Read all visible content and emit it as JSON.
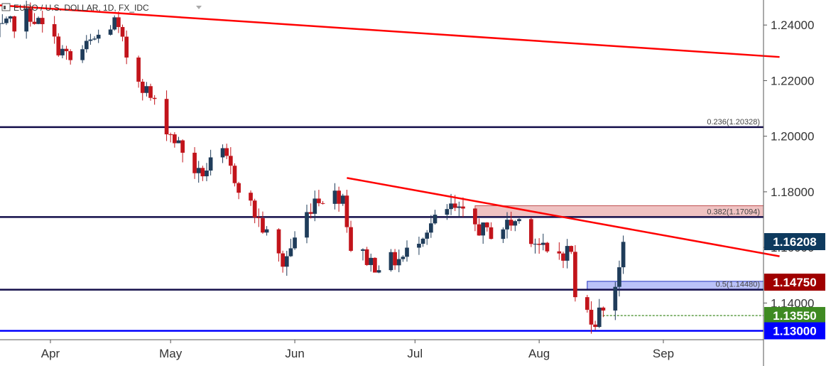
{
  "header": {
    "title": "EURO / U.S. DOLLAR, 1D, FX_IDC"
  },
  "colors": {
    "up": "#1f3c5a",
    "down": "#c2141b",
    "trendline": "#ff0000",
    "level": "#130e4a",
    "support_line": "#0000ff",
    "price_tag_current": "#0e3a5e",
    "price_tag_red": "#a00000",
    "price_tag_green": "#3e8a22",
    "price_tag_blue": "#0000ff",
    "dashed_line": "#3e8a22",
    "resistance_zone": "#e8a8a8",
    "support_zone": "#9ea8f5"
  },
  "chart_data": {
    "type": "candlestick",
    "title": "EURO / U.S. DOLLAR, 1D, FX_IDC",
    "ylim": [
      1.1268,
      1.249
    ],
    "y_ticks": [
      1.24,
      1.22,
      1.2,
      1.18,
      1.16,
      1.14
    ],
    "y_tick_labels": [
      "1.24000",
      "1.22000",
      "1.20000",
      "1.18000",
      "1.16000",
      "1.14000"
    ],
    "months": [
      {
        "label": "Apr",
        "date": "2018-04-01"
      },
      {
        "label": "May",
        "date": "2018-05-01"
      },
      {
        "label": "Jun",
        "date": "2018-06-01"
      },
      {
        "label": "Jul",
        "date": "2018-07-01"
      },
      {
        "label": "Aug",
        "date": "2018-08-01"
      },
      {
        "label": "Sep",
        "date": "2018-09-01"
      }
    ],
    "anchors": [
      {
        "date": "2018-03-16",
        "price": 1.235
      },
      {
        "date": "2018-03-27",
        "price": 1.244
      },
      {
        "date": "2018-04-06",
        "price": 1.227
      },
      {
        "date": "2018-04-17",
        "price": 1.241
      },
      {
        "date": "2018-04-20",
        "price": 1.229
      },
      {
        "date": "2018-05-01",
        "price": 1.201
      },
      {
        "date": "2018-05-08",
        "price": 1.186
      },
      {
        "date": "2018-05-14",
        "price": 1.193
      },
      {
        "date": "2018-05-29",
        "price": 1.154
      },
      {
        "date": "2018-06-06",
        "price": 1.178
      },
      {
        "date": "2018-06-13",
        "price": 1.179
      },
      {
        "date": "2018-06-15",
        "price": 1.16
      },
      {
        "date": "2018-06-21",
        "price": 1.154
      },
      {
        "date": "2018-06-28",
        "price": 1.156
      },
      {
        "date": "2018-07-03",
        "price": 1.166
      },
      {
        "date": "2018-07-10",
        "price": 1.174
      },
      {
        "date": "2018-07-19",
        "price": 1.165
      },
      {
        "date": "2018-07-27",
        "price": 1.17
      },
      {
        "date": "2018-08-03",
        "price": 1.157
      },
      {
        "date": "2018-08-09",
        "price": 1.159
      },
      {
        "date": "2018-08-10",
        "price": 1.141
      },
      {
        "date": "2018-08-15",
        "price": 1.134
      },
      {
        "date": "2018-08-20",
        "price": 1.147
      },
      {
        "date": "2018-08-22",
        "price": 1.162
      }
    ],
    "last_candle_date": "2018-08-22",
    "trendlines": [
      {
        "from": {
          "date": "2018-03-15",
          "price": 1.2475
        },
        "to": {
          "date": "2018-09-30",
          "price": 1.2285
        }
      },
      {
        "from": {
          "date": "2018-06-14",
          "price": 1.185
        },
        "to": {
          "date": "2018-09-30",
          "price": 1.1568
        }
      }
    ],
    "fib_levels": [
      {
        "label": "0.236(1.20328)",
        "price": 1.20328
      },
      {
        "label": "0.382(1.17094)",
        "price": 1.17094
      },
      {
        "label": "0.5(1.14480)",
        "price": 1.1448
      }
    ],
    "support_line": {
      "price": 1.13
    },
    "dashed_line": {
      "price": 1.1355,
      "from_date": "2018-08-16"
    },
    "zones": [
      {
        "name": "resistance",
        "from_date": "2018-07-16",
        "to_date": "2018-09-30",
        "price_top": 1.175,
        "price_bottom": 1.171
      },
      {
        "name": "support",
        "from_date": "2018-08-13",
        "to_date": "2018-09-30",
        "price_top": 1.1478,
        "price_bottom": 1.1448
      }
    ],
    "price_tags": [
      {
        "label": "1.16208",
        "price": 1.16208,
        "color": "#0e3a5e"
      },
      {
        "label": "1.14750",
        "price": 1.1475,
        "color": "#a00000"
      },
      {
        "label": "1.13550",
        "price": 1.1355,
        "color": "#3e8a22"
      },
      {
        "label": "1.13000",
        "price": 1.13,
        "color": "#0000ff"
      }
    ]
  }
}
